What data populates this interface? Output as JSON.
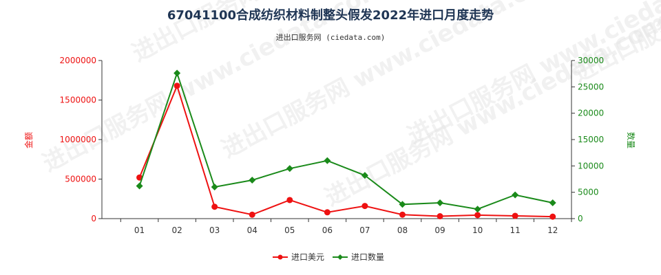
{
  "page": {
    "title": "67041100合成纺织材料制整头假发2022年进口月度走势",
    "subtitle": "进出口服务网 (ciedata.com)",
    "watermark": "进出口服务网 www.ciedata.com"
  },
  "colors": {
    "left_series": "#ee1111",
    "right_series": "#1a8a1a",
    "axis": "#333333",
    "title": "#1f3554"
  },
  "chart_data": {
    "type": "line",
    "title": "67041100合成纺织材料制整头假发2022年进口月度走势",
    "subtitle": "进出口服务网 (ciedata.com)",
    "categories": [
      "01",
      "02",
      "03",
      "04",
      "05",
      "06",
      "07",
      "08",
      "09",
      "10",
      "11",
      "12"
    ],
    "y_left": {
      "label": "金额",
      "ylim": [
        0,
        2000000
      ],
      "ticks": [
        0,
        500000,
        1000000,
        1500000,
        2000000
      ]
    },
    "y_right": {
      "label": "数量",
      "ylim": [
        0,
        30000
      ],
      "ticks": [
        0,
        5000,
        10000,
        15000,
        20000,
        25000,
        30000
      ]
    },
    "grid": false,
    "legend_position": "bottom-center",
    "series": [
      {
        "name": "进口美元",
        "axis": "left",
        "marker": "circle",
        "color": "#ee1111",
        "values": [
          520000,
          1680000,
          150000,
          50000,
          235000,
          80000,
          160000,
          50000,
          30000,
          45000,
          35000,
          25000
        ]
      },
      {
        "name": "进口数量",
        "axis": "right",
        "marker": "diamond",
        "color": "#1a8a1a",
        "values": [
          6200,
          27600,
          6000,
          7300,
          9500,
          11000,
          8200,
          2700,
          3000,
          1800,
          4500,
          3000
        ]
      }
    ]
  }
}
